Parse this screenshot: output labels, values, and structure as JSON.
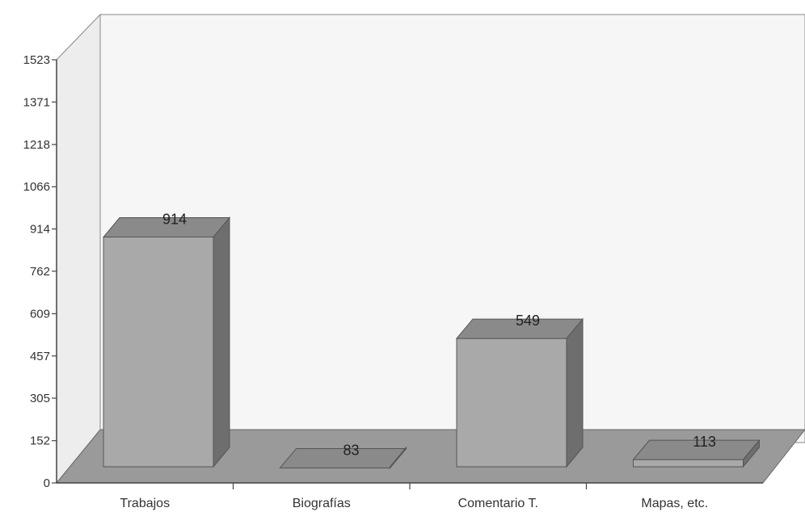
{
  "chart_data": {
    "type": "bar",
    "title": "",
    "xlabel": "",
    "ylabel": "",
    "categories": [
      "Trabajos",
      "Biografías",
      "Comentario T.",
      "Mapas, etc."
    ],
    "values": [
      914,
      83,
      549,
      113
    ],
    "data_labels": [
      "914",
      "83",
      "549",
      "113"
    ],
    "y_ticks": [
      0,
      152,
      305,
      457,
      609,
      762,
      914,
      1066,
      1218,
      1371,
      1523
    ],
    "ylim": [
      0,
      1523
    ],
    "grid": false,
    "legend": "none",
    "style": "3d",
    "colors": {
      "bar_front": "#a9a9a9",
      "bar_top": "#8a8a8a",
      "bar_side": "#6e6e6e",
      "floor": "#9a9a9a",
      "wall": "#f6f6f6"
    }
  }
}
